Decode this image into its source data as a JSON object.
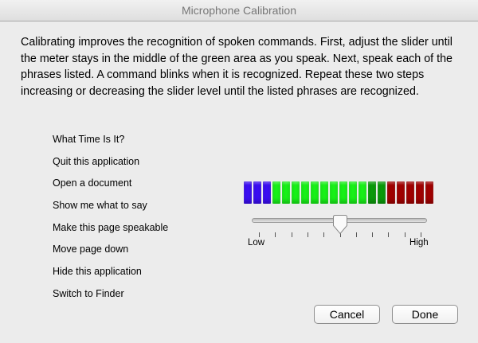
{
  "window": {
    "title": "Microphone Calibration"
  },
  "description": "Calibrating improves the recognition of spoken commands. First, adjust the slider until the meter stays in the middle of the green area as you speak. Next, speak each of the phrases listed. A command blinks when it is recognized. Repeat these two steps increasing or decreasing the slider level until the listed phrases are recognized.",
  "phrases": [
    "What Time Is It?",
    "Quit this application",
    "Open a document",
    "Show me what to say",
    "Make this page speakable",
    "Move page down",
    "Hide this application",
    "Switch to Finder"
  ],
  "meter": {
    "segments": [
      "#3a0df2",
      "#3a0df2",
      "#3a0df2",
      "#18f018",
      "#18f018",
      "#18f018",
      "#18f018",
      "#18f018",
      "#18f018",
      "#18f018",
      "#18f018",
      "#18f018",
      "#18f018",
      "#0a9a0a",
      "#0a9a0a",
      "#a00000",
      "#a00000",
      "#a00000",
      "#a00000",
      "#a00000"
    ]
  },
  "slider": {
    "value_percent": 50,
    "tick_count": 11,
    "min_label": "Low",
    "max_label": "High"
  },
  "buttons": {
    "cancel": "Cancel",
    "done": "Done"
  }
}
